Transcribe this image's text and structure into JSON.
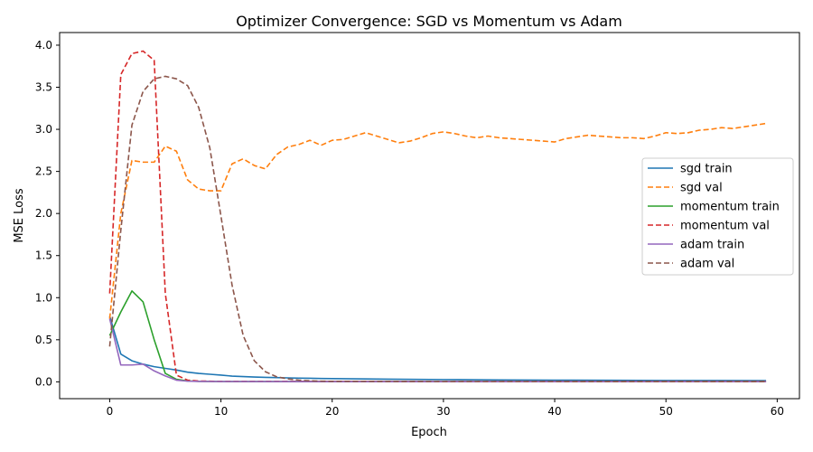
{
  "chart_data": {
    "type": "line",
    "title": "Optimizer Convergence: SGD vs Momentum vs Adam",
    "xlabel": "Epoch",
    "ylabel": "MSE Loss",
    "xlim": [
      -4.5,
      62
    ],
    "ylim": [
      -0.2,
      4.15
    ],
    "xticks": [
      0,
      10,
      20,
      30,
      40,
      50,
      60
    ],
    "yticks": [
      0.0,
      0.5,
      1.0,
      1.5,
      2.0,
      2.5,
      3.0,
      3.5,
      4.0
    ],
    "ytick_labels": [
      "0.0",
      "0.5",
      "1.0",
      "1.5",
      "2.0",
      "2.5",
      "3.0",
      "3.5",
      "4.0"
    ],
    "grid": false,
    "legend": "center-right",
    "series": [
      {
        "name": "sgd train",
        "color": "#1f77b4",
        "style": "solid",
        "points": [
          [
            0,
            0.78
          ],
          [
            1,
            0.33
          ],
          [
            2,
            0.25
          ],
          [
            3,
            0.21
          ],
          [
            4,
            0.18
          ],
          [
            5,
            0.16
          ],
          [
            6,
            0.14
          ],
          [
            7,
            0.115
          ],
          [
            8,
            0.1
          ],
          [
            9,
            0.09
          ],
          [
            10,
            0.08
          ],
          [
            11,
            0.068
          ],
          [
            12,
            0.062
          ],
          [
            13,
            0.057
          ],
          [
            14,
            0.053
          ],
          [
            15,
            0.05
          ],
          [
            16,
            0.047
          ],
          [
            17,
            0.044
          ],
          [
            18,
            0.042
          ],
          [
            19,
            0.04
          ],
          [
            20,
            0.038
          ],
          [
            25,
            0.032
          ],
          [
            30,
            0.027
          ],
          [
            35,
            0.023
          ],
          [
            40,
            0.02
          ],
          [
            45,
            0.018
          ],
          [
            50,
            0.016
          ],
          [
            55,
            0.015
          ],
          [
            59,
            0.014
          ]
        ]
      },
      {
        "name": "sgd val",
        "color": "#ff7f0e",
        "style": "dashed",
        "points": [
          [
            0,
            0.75
          ],
          [
            1,
            2.0
          ],
          [
            2,
            2.63
          ],
          [
            3,
            2.61
          ],
          [
            4,
            2.61
          ],
          [
            5,
            2.8
          ],
          [
            6,
            2.74
          ],
          [
            7,
            2.4
          ],
          [
            8,
            2.29
          ],
          [
            9,
            2.27
          ],
          [
            10,
            2.27
          ],
          [
            11,
            2.59
          ],
          [
            12,
            2.65
          ],
          [
            13,
            2.57
          ],
          [
            14,
            2.53
          ],
          [
            15,
            2.7
          ],
          [
            16,
            2.79
          ],
          [
            17,
            2.82
          ],
          [
            18,
            2.87
          ],
          [
            19,
            2.81
          ],
          [
            20,
            2.87
          ],
          [
            21,
            2.88
          ],
          [
            22,
            2.92
          ],
          [
            23,
            2.96
          ],
          [
            24,
            2.92
          ],
          [
            25,
            2.88
          ],
          [
            26,
            2.84
          ],
          [
            27,
            2.86
          ],
          [
            28,
            2.9
          ],
          [
            29,
            2.95
          ],
          [
            30,
            2.97
          ],
          [
            31,
            2.95
          ],
          [
            32,
            2.92
          ],
          [
            33,
            2.9
          ],
          [
            34,
            2.92
          ],
          [
            35,
            2.9
          ],
          [
            36,
            2.89
          ],
          [
            37,
            2.88
          ],
          [
            38,
            2.87
          ],
          [
            39,
            2.86
          ],
          [
            40,
            2.85
          ],
          [
            41,
            2.89
          ],
          [
            42,
            2.91
          ],
          [
            43,
            2.93
          ],
          [
            44,
            2.92
          ],
          [
            45,
            2.91
          ],
          [
            46,
            2.9
          ],
          [
            47,
            2.9
          ],
          [
            48,
            2.89
          ],
          [
            49,
            2.92
          ],
          [
            50,
            2.96
          ],
          [
            51,
            2.95
          ],
          [
            52,
            2.96
          ],
          [
            53,
            2.99
          ],
          [
            54,
            3.0
          ],
          [
            55,
            3.02
          ],
          [
            56,
            3.01
          ],
          [
            57,
            3.03
          ],
          [
            58,
            3.05
          ],
          [
            59,
            3.07
          ]
        ]
      },
      {
        "name": "momentum train",
        "color": "#2ca02c",
        "style": "solid",
        "points": [
          [
            0,
            0.55
          ],
          [
            1,
            0.83
          ],
          [
            2,
            1.08
          ],
          [
            3,
            0.95
          ],
          [
            4,
            0.5
          ],
          [
            5,
            0.1
          ],
          [
            6,
            0.03
          ],
          [
            7,
            0.01
          ],
          [
            8,
            0.006
          ],
          [
            10,
            0.004
          ],
          [
            20,
            0.003
          ],
          [
            30,
            0.003
          ],
          [
            40,
            0.003
          ],
          [
            50,
            0.003
          ],
          [
            59,
            0.003
          ]
        ]
      },
      {
        "name": "momentum val",
        "color": "#d62728",
        "style": "dashed",
        "points": [
          [
            0,
            1.05
          ],
          [
            1,
            3.65
          ],
          [
            2,
            3.9
          ],
          [
            3,
            3.93
          ],
          [
            4,
            3.82
          ],
          [
            5,
            1.05
          ],
          [
            6,
            0.08
          ],
          [
            7,
            0.02
          ],
          [
            8,
            0.01
          ],
          [
            10,
            0.005
          ],
          [
            20,
            0.004
          ],
          [
            30,
            0.003
          ],
          [
            40,
            0.003
          ],
          [
            50,
            0.003
          ],
          [
            59,
            0.003
          ]
        ]
      },
      {
        "name": "adam train",
        "color": "#9467bd",
        "style": "solid",
        "points": [
          [
            0,
            0.75
          ],
          [
            1,
            0.2
          ],
          [
            2,
            0.2
          ],
          [
            3,
            0.21
          ],
          [
            4,
            0.13
          ],
          [
            5,
            0.07
          ],
          [
            6,
            0.02
          ],
          [
            7,
            0.008
          ],
          [
            8,
            0.005
          ],
          [
            10,
            0.003
          ],
          [
            20,
            0.002
          ],
          [
            30,
            0.002
          ],
          [
            40,
            0.002
          ],
          [
            50,
            0.002
          ],
          [
            59,
            0.002
          ]
        ]
      },
      {
        "name": "adam val",
        "color": "#8c564b",
        "style": "dashed",
        "points": [
          [
            0,
            0.42
          ],
          [
            1,
            1.8
          ],
          [
            2,
            3.05
          ],
          [
            3,
            3.45
          ],
          [
            4,
            3.6
          ],
          [
            5,
            3.63
          ],
          [
            6,
            3.6
          ],
          [
            7,
            3.52
          ],
          [
            8,
            3.26
          ],
          [
            9,
            2.78
          ],
          [
            10,
            1.97
          ],
          [
            11,
            1.15
          ],
          [
            12,
            0.55
          ],
          [
            13,
            0.25
          ],
          [
            14,
            0.12
          ],
          [
            15,
            0.06
          ],
          [
            16,
            0.035
          ],
          [
            17,
            0.02
          ],
          [
            18,
            0.012
          ],
          [
            19,
            0.008
          ],
          [
            20,
            0.006
          ],
          [
            30,
            0.004
          ],
          [
            40,
            0.004
          ],
          [
            50,
            0.003
          ],
          [
            59,
            0.003
          ]
        ]
      }
    ]
  }
}
